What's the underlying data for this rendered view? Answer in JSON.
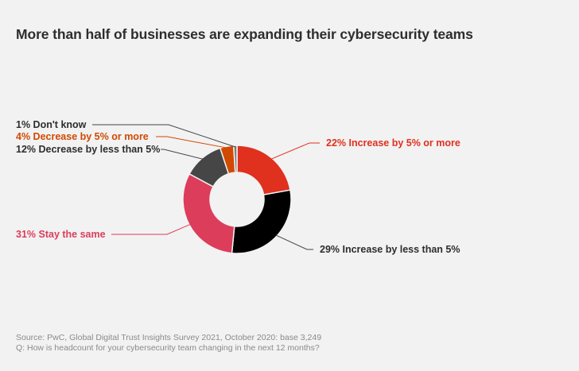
{
  "title": "More than half of businesses are expanding their cybersecurity teams",
  "source_line_1": "Source: PwC, Global Digital Trust Insights Survey 2021, October 2020: base 3,249",
  "source_line_2": "Q: How is headcount for your cybersecurity team changing in the next 12 months?",
  "colors": {
    "background": "#f2f2f2",
    "title": "#2d2d2d",
    "source": "#8a8a8a",
    "leader_line": "#444444"
  },
  "chart_data": {
    "type": "pie",
    "variant": "donut",
    "start": "top, clockwise",
    "segments": [
      {
        "label": "22% Increase by 5% or more",
        "value": 22,
        "color": "#e0301e",
        "label_color": "#e0301e"
      },
      {
        "label": "29% Increase by less than 5%",
        "value": 29,
        "color": "#000000",
        "label_color": "#2d2d2d"
      },
      {
        "label": "31% Stay the same",
        "value": 31,
        "color": "#db3d5b",
        "label_color": "#db3d5b"
      },
      {
        "label": "12% Decrease by less than 5%",
        "value": 12,
        "color": "#464646",
        "label_color": "#2d2d2d"
      },
      {
        "label": "4% Decrease by 5% or more",
        "value": 4,
        "color": "#d04a02",
        "label_color": "#d04a02"
      },
      {
        "label": "1% Don't know",
        "value": 1,
        "color": "#7d7d7d",
        "label_color": "#2d2d2d"
      }
    ]
  }
}
